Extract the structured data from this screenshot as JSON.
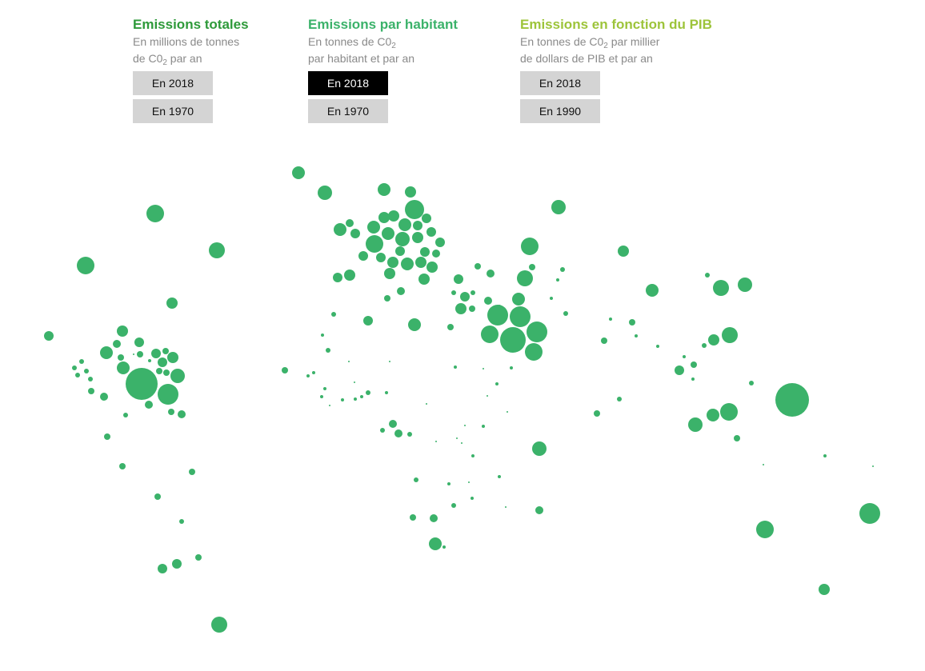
{
  "colors": {
    "total": "#2e9a3a",
    "per_capita": "#3bb26a",
    "gdp": "#9dc43a",
    "bubble": "#3bb26a"
  },
  "panels": [
    {
      "title": "Emissions totales",
      "sub_line1_pre": "En millions de tonnes",
      "sub_line2_pre": "de C0",
      "sub_line2_sub": "2",
      "sub_line2_post": " par an",
      "buttons": [
        {
          "label": "En 2018",
          "active": false
        },
        {
          "label": "En 1970",
          "active": false
        }
      ]
    },
    {
      "title": "Emissions par habitant",
      "sub_line1_pre": "En tonnes de C0",
      "sub_line1_sub": "2",
      "sub_line2_pre": "par habitant et par an",
      "buttons": [
        {
          "label": "En 2018",
          "active": true
        },
        {
          "label": "En 1970",
          "active": false
        }
      ]
    },
    {
      "title": "Emissions en fonction du PIB",
      "sub_line1_pre": "En tonnes de C0",
      "sub_line1_sub": "2",
      "sub_line1_post": " par millier",
      "sub_line2_pre": "de dollars de PIB et par an",
      "buttons": [
        {
          "label": "En 2018",
          "active": false
        },
        {
          "label": "En 1990",
          "active": false
        }
      ]
    }
  ]
}
